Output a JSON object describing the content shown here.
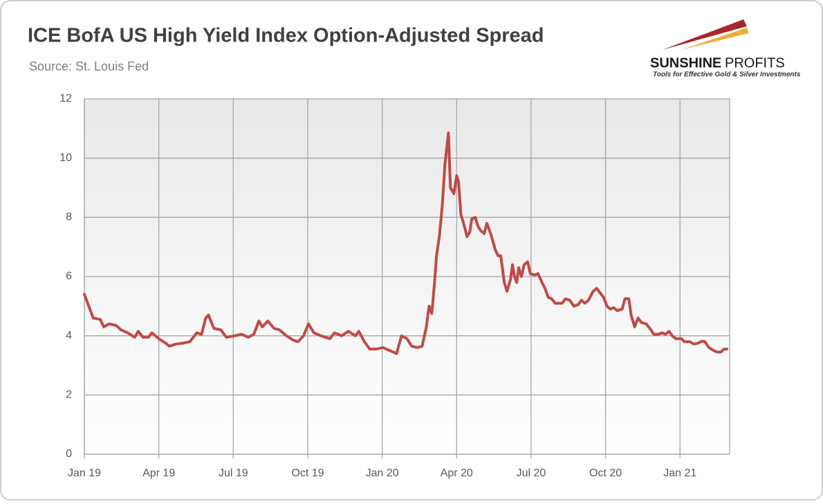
{
  "chart_data": {
    "type": "line",
    "title": "ICE BofA US High Yield Index Option-Adjusted Spread",
    "subtitle": "Source: St. Louis Fed",
    "x": [
      0,
      0.22,
      0.36,
      0.64,
      0.78,
      1.0,
      1.28,
      1.47,
      1.75,
      2.03,
      2.17,
      2.36,
      2.58,
      2.72,
      3.0,
      3.28,
      3.42,
      3.69,
      3.97,
      4.25,
      4.53,
      4.72,
      4.89,
      5.0,
      5.22,
      5.5,
      5.72,
      6.06,
      6.33,
      6.61,
      6.83,
      7.03,
      7.17,
      7.39,
      7.64,
      7.86,
      8.14,
      8.42,
      8.61,
      8.83,
      9.03,
      9.25,
      9.53,
      9.89,
      10.08,
      10.36,
      10.64,
      10.92,
      11.06,
      11.28,
      11.5,
      11.75,
      12.03,
      12.31,
      12.58,
      12.78,
      13.0,
      13.19,
      13.42,
      13.61,
      13.78,
      13.89,
      14.0,
      14.11,
      14.19,
      14.31,
      14.42,
      14.53,
      14.67,
      14.75,
      14.89,
      15.0,
      15.08,
      15.17,
      15.28,
      15.42,
      15.53,
      15.61,
      15.75,
      15.86,
      15.97,
      16.11,
      16.22,
      16.39,
      16.56,
      16.67,
      16.78,
      16.92,
      17.03,
      17.17,
      17.25,
      17.33,
      17.42,
      17.5,
      17.61,
      17.72,
      17.86,
      17.97,
      18.14,
      18.28,
      18.44,
      18.56,
      18.69,
      18.83,
      18.97,
      19.25,
      19.39,
      19.56,
      19.72,
      19.89,
      20.03,
      20.17,
      20.31,
      20.5,
      20.64,
      20.78,
      20.92,
      21.06,
      21.19,
      21.33,
      21.47,
      21.67,
      21.78,
      21.94,
      22.03,
      22.17,
      22.31,
      22.44,
      22.64,
      22.83,
      22.94,
      23.14,
      23.28,
      23.42,
      23.56,
      23.69,
      23.83,
      24.06,
      24.17,
      24.39,
      24.56,
      24.72,
      24.89,
      25.0,
      25.17,
      25.36,
      25.5,
      25.64,
      25.78,
      25.89
    ],
    "series": [
      {
        "name": "Option-Adjusted Spread",
        "color": "#be4b48",
        "values": [
          5.4,
          4.9,
          4.6,
          4.55,
          4.3,
          4.4,
          4.35,
          4.2,
          4.1,
          3.95,
          4.15,
          3.95,
          3.95,
          4.1,
          3.9,
          3.75,
          3.65,
          3.72,
          3.75,
          3.8,
          4.1,
          4.05,
          4.6,
          4.7,
          4.25,
          4.2,
          3.95,
          4.0,
          4.05,
          3.95,
          4.05,
          4.5,
          4.3,
          4.5,
          4.25,
          4.2,
          4.0,
          3.85,
          3.8,
          4.0,
          4.4,
          4.1,
          4.0,
          3.9,
          4.1,
          4.0,
          4.15,
          4.0,
          4.15,
          3.8,
          3.55,
          3.55,
          3.6,
          3.5,
          3.4,
          4.0,
          3.9,
          3.65,
          3.6,
          3.65,
          4.3,
          5.0,
          4.75,
          5.8,
          6.7,
          7.4,
          8.4,
          9.8,
          10.85,
          9.0,
          8.8,
          9.4,
          9.2,
          8.1,
          7.8,
          7.35,
          7.5,
          7.95,
          8.0,
          7.7,
          7.55,
          7.45,
          7.8,
          7.4,
          6.9,
          6.7,
          6.7,
          5.8,
          5.5,
          5.9,
          6.4,
          6.0,
          5.8,
          6.3,
          6.0,
          6.4,
          6.5,
          6.1,
          6.05,
          6.1,
          5.8,
          5.6,
          5.3,
          5.25,
          5.1,
          5.1,
          5.25,
          5.2,
          5.0,
          5.05,
          5.2,
          5.1,
          5.2,
          5.5,
          5.6,
          5.45,
          5.3,
          5.0,
          4.9,
          4.95,
          4.85,
          4.9,
          5.25,
          5.25,
          4.7,
          4.3,
          4.6,
          4.45,
          4.4,
          4.2,
          4.05,
          4.05,
          4.1,
          4.05,
          4.15,
          4.0,
          3.9,
          3.9,
          3.8,
          3.8,
          3.72,
          3.75,
          3.82,
          3.8,
          3.6,
          3.5,
          3.45,
          3.45,
          3.55,
          3.55
        ]
      }
    ],
    "xlim": [
      0,
      26
    ],
    "xticks": [
      {
        "value": 0,
        "label": "Jan 19"
      },
      {
        "value": 3,
        "label": "Apr 19"
      },
      {
        "value": 6,
        "label": "Jul 19"
      },
      {
        "value": 9,
        "label": "Oct 19"
      },
      {
        "value": 12,
        "label": "Jan 20"
      },
      {
        "value": 15,
        "label": "Apr 20"
      },
      {
        "value": 18,
        "label": "Jul 20"
      },
      {
        "value": 21,
        "label": "Oct 20"
      },
      {
        "value": 24,
        "label": "Jan 21"
      }
    ],
    "ylim": [
      0,
      12
    ],
    "yticks": [
      0,
      2,
      4,
      6,
      8,
      10,
      12
    ],
    "grid": true
  },
  "logo": {
    "name_bold": "SUNSHINE",
    "name_light": "PROFITS",
    "tagline": "Tools for Effective Gold & Silver Investments"
  }
}
